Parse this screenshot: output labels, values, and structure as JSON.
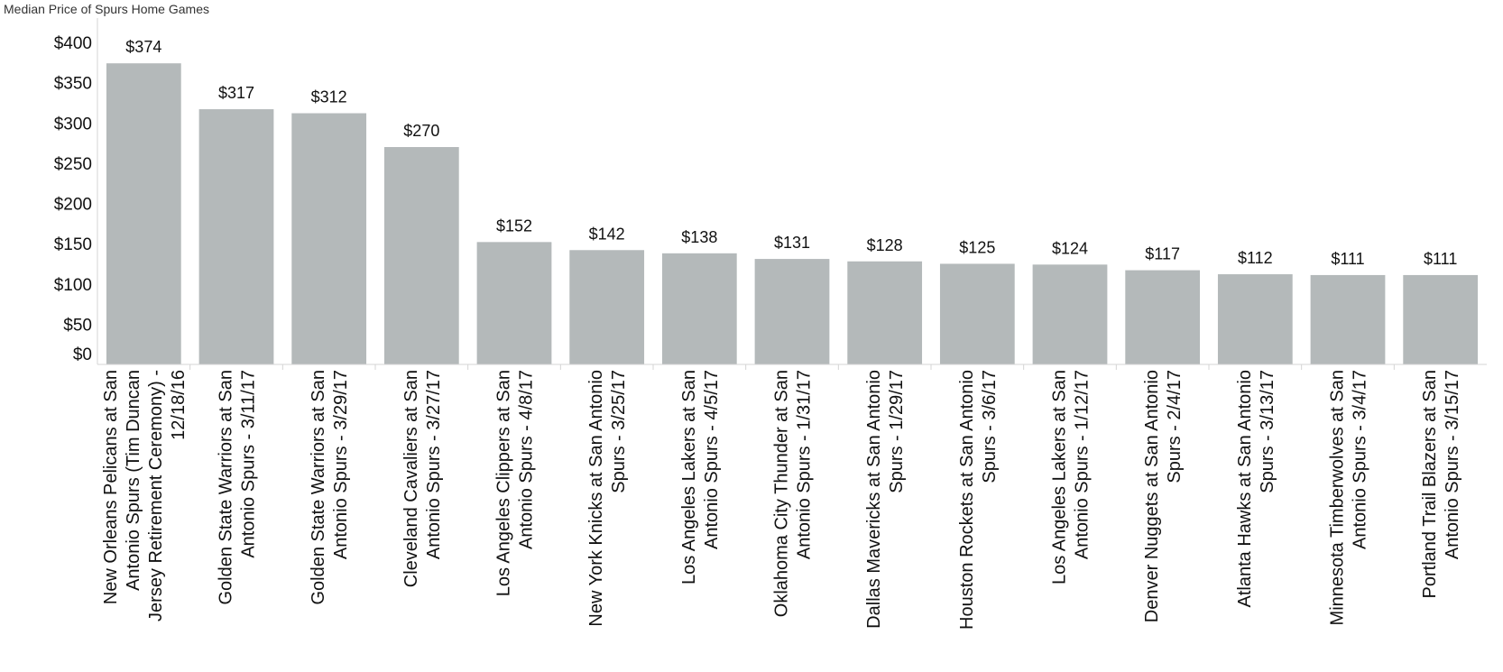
{
  "chart_data": {
    "type": "bar",
    "title": "Median Price of Spurs Home Games",
    "xlabel": "",
    "ylabel": "",
    "ylim": [
      0,
      400
    ],
    "y_ticks": [
      0,
      50,
      100,
      150,
      200,
      250,
      300,
      350,
      400
    ],
    "y_tick_labels": [
      "$0",
      "$50",
      "$100",
      "$150",
      "$200",
      "$250",
      "$300",
      "$350",
      "$400"
    ],
    "grid": false,
    "legend": "none",
    "bar_color": "#b4b9ba",
    "categories": [
      [
        "New Orleans Pelicans at San",
        "Antonio Spurs (Tim Duncan",
        "Jersey Retirement Ceremony) -",
        "12/18/16"
      ],
      [
        "Golden State Warriors at San",
        "Antonio Spurs - 3/11/17"
      ],
      [
        "Golden State Warriors at San",
        "Antonio Spurs - 3/29/17"
      ],
      [
        "Cleveland Cavaliers at San",
        "Antonio Spurs - 3/27/17"
      ],
      [
        "Los Angeles Clippers at San",
        "Antonio Spurs - 4/8/17"
      ],
      [
        "New York Knicks at San Antonio",
        "Spurs - 3/25/17"
      ],
      [
        "Los Angeles Lakers at San",
        "Antonio Spurs - 4/5/17"
      ],
      [
        "Oklahoma City Thunder at San",
        "Antonio Spurs - 1/31/17"
      ],
      [
        "Dallas Mavericks at San Antonio",
        "Spurs - 1/29/17"
      ],
      [
        "Houston Rockets at San Antonio",
        "Spurs - 3/6/17"
      ],
      [
        "Los Angeles Lakers at San",
        "Antonio Spurs - 1/12/17"
      ],
      [
        "Denver Nuggets at San Antonio",
        "Spurs - 2/4/17"
      ],
      [
        "Atlanta Hawks at San Antonio",
        "Spurs - 3/13/17"
      ],
      [
        "Minnesota Timberwolves at San",
        "Antonio Spurs - 3/4/17"
      ],
      [
        "Portland Trail Blazers at San",
        "Antonio Spurs - 3/15/17"
      ]
    ],
    "values": [
      374,
      317,
      312,
      270,
      152,
      142,
      138,
      131,
      128,
      125,
      124,
      117,
      112,
      111,
      111
    ],
    "value_labels": [
      "$374",
      "$317",
      "$312",
      "$270",
      "$152",
      "$142",
      "$138",
      "$131",
      "$128",
      "$125",
      "$124",
      "$117",
      "$112",
      "$111",
      "$111"
    ]
  }
}
